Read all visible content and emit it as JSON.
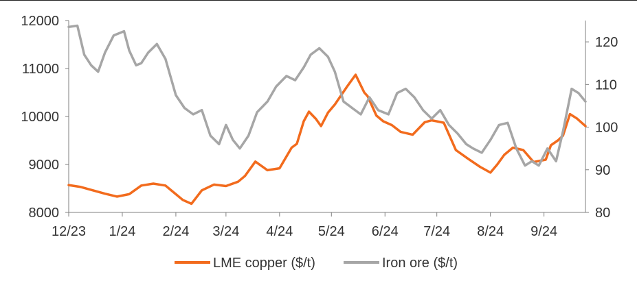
{
  "colors": {
    "copper": "#f26b1d",
    "iron": "#a6a6a6",
    "axis": "#7f7f7f",
    "text": "#333333"
  },
  "chart_data": {
    "type": "line",
    "title": "",
    "xlabel": "",
    "ylabel_left": "",
    "ylabel_right": "",
    "grid": false,
    "legend_position": "bottom-center",
    "x_ticks": [
      "12/23",
      "1/24",
      "2/24",
      "3/24",
      "4/24",
      "5/24",
      "6/24",
      "7/24",
      "8/24",
      "9/24"
    ],
    "x_range": [
      "2023-12-01",
      "2024-09-25"
    ],
    "y_left": {
      "min": 8000,
      "max": 12000,
      "ticks": [
        "8000",
        "9000",
        "10000",
        "11000",
        "12000"
      ]
    },
    "y_right": {
      "min": 80,
      "max": 125,
      "ticks": [
        "80",
        "90",
        "100",
        "110",
        "120"
      ]
    },
    "series": [
      {
        "name": "LME copper ($/t)",
        "axis": "left",
        "color": "#f26b1d",
        "x": [
          "2023-12-01",
          "2023-12-08",
          "2023-12-15",
          "2023-12-22",
          "2023-12-29",
          "2024-01-05",
          "2024-01-12",
          "2024-01-19",
          "2024-01-26",
          "2024-02-01",
          "2024-02-05",
          "2024-02-10",
          "2024-02-16",
          "2024-02-23",
          "2024-03-01",
          "2024-03-08",
          "2024-03-12",
          "2024-03-18",
          "2024-03-25",
          "2024-04-01",
          "2024-04-08",
          "2024-04-11",
          "2024-04-15",
          "2024-04-18",
          "2024-04-22",
          "2024-04-25",
          "2024-04-29",
          "2024-05-03",
          "2024-05-10",
          "2024-05-15",
          "2024-05-20",
          "2024-05-22",
          "2024-05-27",
          "2024-05-31",
          "2024-06-05",
          "2024-06-10",
          "2024-06-17",
          "2024-06-24",
          "2024-06-28",
          "2024-07-05",
          "2024-07-12",
          "2024-07-19",
          "2024-07-26",
          "2024-08-01",
          "2024-08-05",
          "2024-08-09",
          "2024-08-14",
          "2024-08-20",
          "2024-08-26",
          "2024-09-02",
          "2024-09-05",
          "2024-09-09",
          "2024-09-12",
          "2024-09-16",
          "2024-09-20",
          "2024-09-25"
        ],
        "y": [
          8570,
          8530,
          8460,
          8390,
          8330,
          8380,
          8560,
          8600,
          8560,
          8380,
          8260,
          8180,
          8460,
          8580,
          8550,
          8640,
          8760,
          9060,
          8880,
          8920,
          9350,
          9430,
          9900,
          10100,
          9950,
          9800,
          10080,
          10250,
          10620,
          10870,
          10500,
          10420,
          10020,
          9900,
          9820,
          9680,
          9620,
          9880,
          9920,
          9870,
          9300,
          9120,
          8950,
          8830,
          9000,
          9200,
          9350,
          9300,
          9050,
          9100,
          9400,
          9500,
          9600,
          10050,
          9960,
          9800
        ]
      },
      {
        "name": "Iron ore ($/t)",
        "axis": "right",
        "color": "#a6a6a6",
        "x": [
          "2023-12-01",
          "2023-12-06",
          "2023-12-10",
          "2023-12-14",
          "2023-12-18",
          "2023-12-22",
          "2023-12-27",
          "2024-01-02",
          "2024-01-05",
          "2024-01-09",
          "2024-01-12",
          "2024-01-16",
          "2024-01-21",
          "2024-01-26",
          "2024-02-01",
          "2024-02-06",
          "2024-02-11",
          "2024-02-16",
          "2024-02-21",
          "2024-02-26",
          "2024-03-01",
          "2024-03-05",
          "2024-03-09",
          "2024-03-14",
          "2024-03-19",
          "2024-03-25",
          "2024-03-30",
          "2024-04-05",
          "2024-04-10",
          "2024-04-15",
          "2024-04-19",
          "2024-04-24",
          "2024-04-29",
          "2024-05-03",
          "2024-05-08",
          "2024-05-13",
          "2024-05-18",
          "2024-05-23",
          "2024-05-28",
          "2024-06-03",
          "2024-06-08",
          "2024-06-13",
          "2024-06-18",
          "2024-06-23",
          "2024-06-28",
          "2024-07-03",
          "2024-07-08",
          "2024-07-13",
          "2024-07-18",
          "2024-07-22",
          "2024-07-27",
          "2024-08-01",
          "2024-08-06",
          "2024-08-11",
          "2024-08-16",
          "2024-08-21",
          "2024-08-25",
          "2024-08-29",
          "2024-09-03",
          "2024-09-08",
          "2024-09-12",
          "2024-09-17",
          "2024-09-21",
          "2024-09-25"
        ],
        "y": [
          123.5,
          123.8,
          117.0,
          114.5,
          113.0,
          117.5,
          121.5,
          122.5,
          118.0,
          114.5,
          115.0,
          117.5,
          119.5,
          116.0,
          107.5,
          104.5,
          103.0,
          104.0,
          98.0,
          96.0,
          100.5,
          97.0,
          95.0,
          98.0,
          103.5,
          106.0,
          109.5,
          112.0,
          111.0,
          114.0,
          117.0,
          118.5,
          116.5,
          113.0,
          106.0,
          104.5,
          103.0,
          107.0,
          104.0,
          103.0,
          108.0,
          109.0,
          107.0,
          104.0,
          102.0,
          104.0,
          100.5,
          98.5,
          96.0,
          95.0,
          94.0,
          97.0,
          100.5,
          101.0,
          95.0,
          91.0,
          92.0,
          91.0,
          95.0,
          92.0,
          99.0,
          109.0,
          108.0,
          106.0
        ]
      }
    ]
  }
}
